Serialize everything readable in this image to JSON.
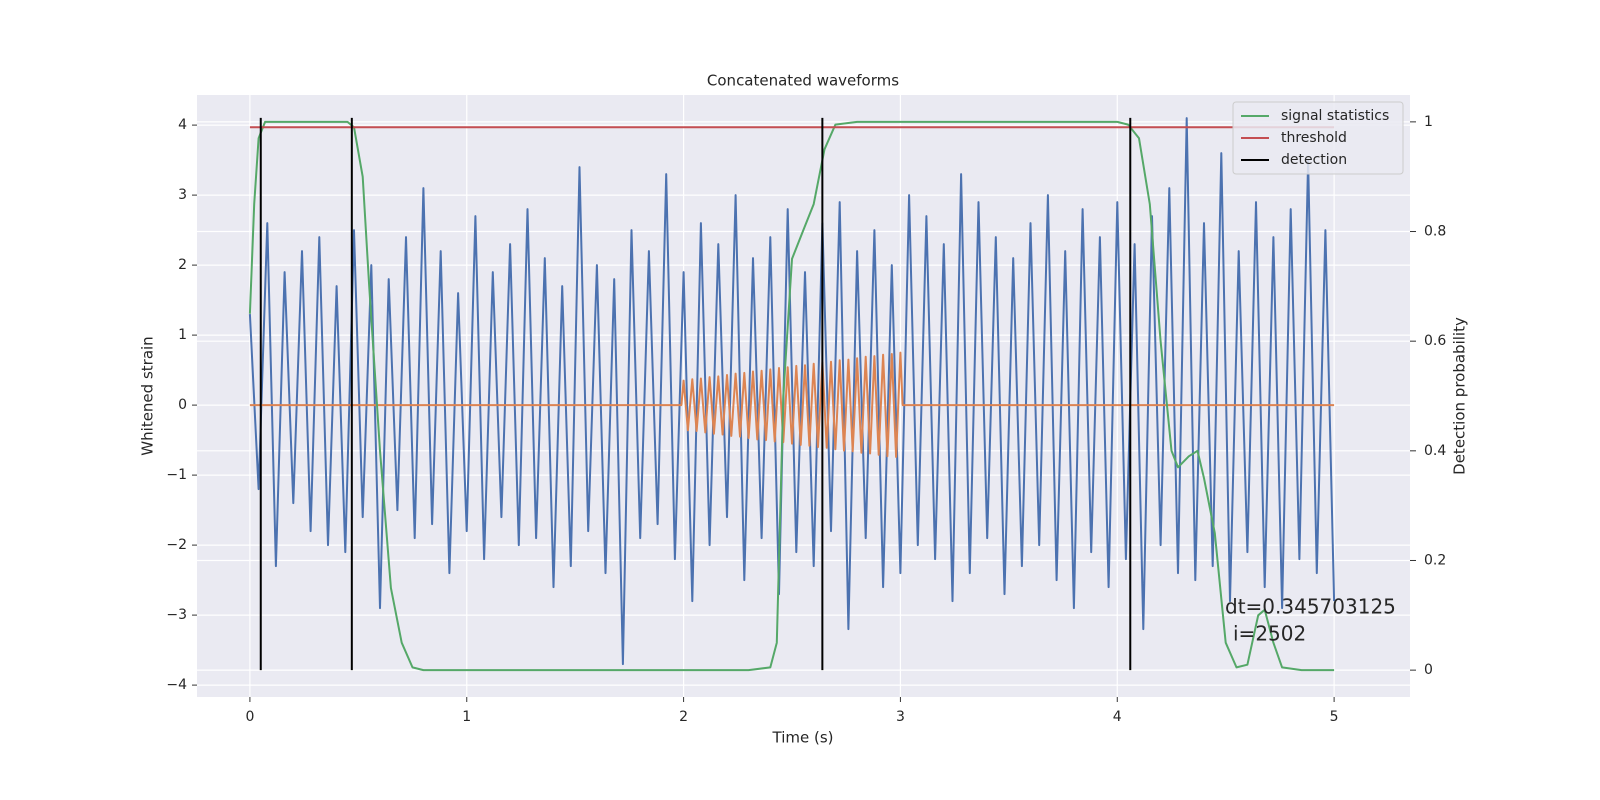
{
  "chart_data": {
    "type": "line",
    "title": "Concatenated waveforms",
    "xlabel": "Time (s)",
    "ylabel": "Whitened strain",
    "y2label": "Detection probability",
    "xlim": [
      -0.244,
      5.35
    ],
    "ylim": [
      -4.17,
      4.43
    ],
    "y2lim": [
      -0.049,
      1.049
    ],
    "xticks": [
      0,
      1,
      2,
      3,
      4,
      5
    ],
    "yticks": [
      {
        "value": -4,
        "label": "−4"
      },
      {
        "value": -3,
        "label": "−3"
      },
      {
        "value": -2,
        "label": "−2"
      },
      {
        "value": -1,
        "label": "−1"
      },
      0,
      1,
      2,
      3,
      4
    ],
    "y2ticks": [
      0.0,
      0.2,
      0.4,
      0.6,
      0.8,
      1.0
    ],
    "grid": true,
    "legend": "upper right",
    "annotation": [
      "dt=0.345703125",
      "i=2502"
    ],
    "series": [
      {
        "color": "#4c72b0",
        "axis": "y",
        "x": [
          0,
          0.04,
          0.08,
          0.12,
          0.16,
          0.2,
          0.24,
          0.28,
          0.32,
          0.36,
          0.4,
          0.44,
          0.48,
          0.52,
          0.56,
          0.6,
          0.64,
          0.68,
          0.72,
          0.76,
          0.8,
          0.84,
          0.88,
          0.92,
          0.96,
          1,
          1.04,
          1.08,
          1.12,
          1.16,
          1.2,
          1.24,
          1.28,
          1.32,
          1.36,
          1.4,
          1.44,
          1.48,
          1.52,
          1.56,
          1.6,
          1.64,
          1.68,
          1.72,
          1.76,
          1.8,
          1.84,
          1.88,
          1.92,
          1.96,
          2,
          2.04,
          2.08,
          2.12,
          2.16,
          2.2,
          2.24,
          2.28,
          2.32,
          2.36,
          2.4,
          2.44,
          2.48,
          2.52,
          2.56,
          2.6,
          2.64,
          2.68,
          2.72,
          2.76,
          2.8,
          2.84,
          2.88,
          2.92,
          2.96,
          3,
          3.04,
          3.08,
          3.12,
          3.16,
          3.2,
          3.24,
          3.28,
          3.32,
          3.36,
          3.4,
          3.44,
          3.48,
          3.52,
          3.56,
          3.6,
          3.64,
          3.68,
          3.72,
          3.76,
          3.8,
          3.84,
          3.88,
          3.92,
          3.96,
          4,
          4.04,
          4.08,
          4.12,
          4.16,
          4.2,
          4.24,
          4.28,
          4.32,
          4.36,
          4.4,
          4.44,
          4.48,
          4.52,
          4.56,
          4.6,
          4.64,
          4.68,
          4.72,
          4.76,
          4.8,
          4.84,
          4.88,
          4.92,
          4.96,
          5
        ],
        "values": [
          1.3,
          -1.2,
          2.6,
          -2.3,
          1.9,
          -1.4,
          2.2,
          -1.8,
          2.4,
          -2.0,
          1.7,
          -2.1,
          2.5,
          -1.6,
          2.0,
          -2.9,
          1.8,
          -1.5,
          2.4,
          -1.9,
          3.1,
          -1.7,
          2.2,
          -2.4,
          1.6,
          -1.8,
          2.7,
          -2.2,
          1.9,
          -1.6,
          2.3,
          -2.0,
          2.8,
          -1.9,
          2.1,
          -2.6,
          1.7,
          -2.3,
          3.4,
          -1.8,
          2.0,
          -2.4,
          1.8,
          -3.7,
          2.5,
          -1.9,
          2.2,
          -1.7,
          3.3,
          -2.2,
          1.9,
          -2.8,
          2.6,
          -2.0,
          2.3,
          -1.6,
          3.0,
          -2.5,
          2.1,
          -1.9,
          2.4,
          -2.7,
          2.8,
          -2.1,
          1.9,
          -2.3,
          2.6,
          -1.8,
          2.9,
          -3.2,
          2.2,
          -1.9,
          2.5,
          -2.6,
          2.0,
          -2.4,
          3.0,
          -2.0,
          2.7,
          -2.2,
          2.3,
          -2.8,
          3.3,
          -2.4,
          2.9,
          -1.9,
          2.4,
          -2.7,
          2.1,
          -2.3,
          2.6,
          -2.0,
          3.0,
          -2.5,
          2.2,
          -2.9,
          2.8,
          -2.1,
          2.4,
          -2.6,
          2.9,
          -2.2,
          2.3,
          -3.2,
          2.7,
          -2.0,
          3.1,
          -2.4,
          4.1,
          -2.5,
          2.6,
          -2.3,
          3.6,
          -2.8,
          2.2,
          -2.1,
          2.9,
          -2.6,
          2.4,
          -2.9,
          2.8,
          -2.2,
          3.5,
          -2.4,
          2.5,
          -2.8
        ]
      },
      {
        "color": "#dd8452",
        "axis": "y",
        "x": [
          0,
          1.99,
          2,
          2.02,
          2.04,
          2.06,
          2.08,
          2.1,
          2.12,
          2.14,
          2.16,
          2.18,
          2.2,
          2.22,
          2.24,
          2.26,
          2.28,
          2.3,
          2.32,
          2.34,
          2.36,
          2.38,
          2.4,
          2.42,
          2.44,
          2.46,
          2.48,
          2.5,
          2.52,
          2.54,
          2.56,
          2.58,
          2.6,
          2.62,
          2.64,
          2.66,
          2.68,
          2.7,
          2.72,
          2.74,
          2.76,
          2.78,
          2.8,
          2.82,
          2.84,
          2.86,
          2.88,
          2.9,
          2.92,
          2.94,
          2.96,
          2.98,
          3,
          3.01,
          5
        ],
        "values": [
          0,
          0,
          0.35,
          -0.36,
          0.37,
          -0.37,
          0.38,
          -0.39,
          0.4,
          -0.41,
          0.41,
          -0.42,
          0.43,
          -0.44,
          0.45,
          -0.45,
          0.46,
          -0.47,
          0.48,
          -0.49,
          0.49,
          -0.5,
          0.51,
          -0.52,
          0.53,
          -0.53,
          0.54,
          -0.55,
          0.56,
          -0.57,
          0.57,
          -0.58,
          0.59,
          -0.6,
          0.61,
          -0.61,
          0.62,
          -0.63,
          0.64,
          -0.65,
          0.65,
          -0.66,
          0.67,
          -0.68,
          0.69,
          -0.69,
          0.7,
          -0.71,
          0.72,
          -0.73,
          0.73,
          -0.74,
          0.75,
          0,
          0
        ]
      },
      {
        "name": "signal statistics",
        "color": "#55a868",
        "axis": "y2",
        "x": [
          0,
          0.02,
          0.04,
          0.07,
          0.2,
          0.45,
          0.48,
          0.52,
          0.55,
          0.6,
          0.65,
          0.7,
          0.75,
          0.8,
          2.3,
          2.4,
          2.43,
          2.46,
          2.5,
          2.55,
          2.6,
          2.65,
          2.7,
          2.8,
          3.0,
          4.0,
          4.05,
          4.1,
          4.15,
          4.2,
          4.25,
          4.28,
          4.33,
          4.37,
          4.4,
          4.45,
          4.5,
          4.55,
          4.6,
          4.65,
          4.68,
          4.72,
          4.76,
          4.85,
          5.0
        ],
        "values": [
          0.65,
          0.85,
          0.97,
          1.0,
          1.0,
          1.0,
          0.99,
          0.9,
          0.7,
          0.4,
          0.15,
          0.05,
          0.005,
          0,
          0,
          0.005,
          0.05,
          0.5,
          0.75,
          0.8,
          0.85,
          0.95,
          0.995,
          1.0,
          1.0,
          1.0,
          0.995,
          0.97,
          0.85,
          0.6,
          0.4,
          0.37,
          0.39,
          0.4,
          0.35,
          0.25,
          0.05,
          0.005,
          0.01,
          0.1,
          0.11,
          0.05,
          0.005,
          0,
          0
        ]
      },
      {
        "name": "threshold",
        "color": "#c44e52",
        "axis": "y2",
        "x": [
          0,
          5
        ],
        "values": [
          0.99,
          0.99
        ]
      },
      {
        "name": "detection",
        "color": "#000000",
        "axis": "y2",
        "vlines": true,
        "x": [
          0.05,
          0.47,
          2.64,
          4.06
        ],
        "values": [
          1.0,
          1.0,
          1.0,
          1.0
        ]
      }
    ]
  }
}
